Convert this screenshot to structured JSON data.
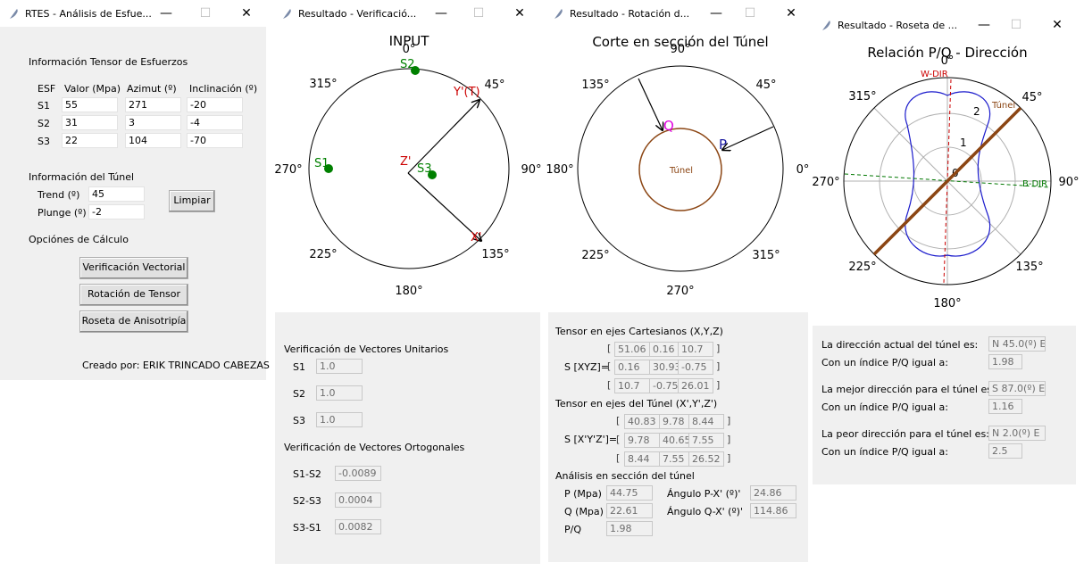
{
  "win1": {
    "title": "RTES - Análisis de Esfue...",
    "sec_tensor": "Información Tensor de Esfuerzos",
    "headers": [
      "ESF",
      "Valor (Mpa)",
      "Azimut (º)",
      "Inclinación (º)"
    ],
    "rows": [
      {
        "name": "S1",
        "valor": "55",
        "azimut": "271",
        "incl": "-20"
      },
      {
        "name": "S2",
        "valor": "31",
        "azimut": "3",
        "incl": "-4"
      },
      {
        "name": "S3",
        "valor": "22",
        "azimut": "104",
        "incl": "-70"
      }
    ],
    "sec_tunel": "Información del Túnel",
    "trend_label": "Trend (º)",
    "trend_value": "45",
    "plunge_label": "Plunge (º)",
    "plunge_value": "-2",
    "limpiar": "Limpiar",
    "sec_calc": "Opciónes de Cálculo",
    "btn_vector": "Verificación Vectorial",
    "btn_rot": "Rotación de Tensor",
    "btn_roseta": "Roseta de Anisotripía",
    "credit": "Creado por: ERIK TRINCADO CABEZAS"
  },
  "win2": {
    "title": "Resultado - Verificació...",
    "plot_title": "INPUT",
    "angles": {
      "a0": "0°",
      "a45": "45°",
      "a90": "90°",
      "a135": "135°",
      "a180": "180°",
      "a225": "225°",
      "a270": "270°",
      "a315": "315°"
    },
    "points": {
      "s1": "S1",
      "s2": "S2",
      "s3": "S3",
      "xp": "X'",
      "yp": "Y'(T)",
      "zp": "Z'"
    },
    "sec_unit": "Verificación de Vectores Unitarios",
    "unit": [
      {
        "label": "S1",
        "value": "1.0"
      },
      {
        "label": "S2",
        "value": "1.0"
      },
      {
        "label": "S3",
        "value": "1.0"
      }
    ],
    "sec_orto": "Verificación de Vectores Ortogonales",
    "orto": [
      {
        "label": "S1-S2",
        "value": "-0.0089"
      },
      {
        "label": "S2-S3",
        "value": "0.0004"
      },
      {
        "label": "S3-S1",
        "value": "0.0082"
      }
    ]
  },
  "win3": {
    "title": "Resultado - Rotación d...",
    "plot_title": "Corte en sección del Túnel",
    "angles": {
      "a0": "0°",
      "a45": "45°",
      "a90": "90°",
      "a135": "135°",
      "a180": "180°",
      "a225": "225°",
      "a270": "270°",
      "a315": "315°"
    },
    "tunel": "Túnel",
    "p": "P",
    "q": "Q",
    "sec_cart": "Tensor en ejes Cartesianos (X,Y,Z)",
    "s_xyz": "S [XYZ]=",
    "m_xyz": [
      [
        "51.06",
        "0.16",
        "10.7"
      ],
      [
        "0.16",
        "30.93",
        "-0.75"
      ],
      [
        "10.7",
        "-0.75",
        "26.01"
      ]
    ],
    "sec_tun": "Tensor en ejes del Túnel (X',Y',Z')",
    "s_tun": "S [X'Y'Z']=",
    "m_tun": [
      [
        "40.83",
        "9.78",
        "8.44"
      ],
      [
        "9.78",
        "40.65",
        "7.55"
      ],
      [
        "8.44",
        "7.55",
        "26.52"
      ]
    ],
    "sec_an": "Análisis en sección del túnel",
    "p_label": "P (Mpa)",
    "p_value": "44.75",
    "q_label": "Q (Mpa)",
    "q_value": "22.61",
    "pq_label": "P/Q",
    "pq_value": "1.98",
    "apx_label": "Ángulo P-X' (º)'",
    "apx_value": "24.86",
    "aqx_label": "Ángulo Q-X' (º)'",
    "aqx_value": "114.86"
  },
  "win4": {
    "title": "Resultado - Roseta de ...",
    "plot_title": "Relación P/Q - Dirección",
    "angles": {
      "a0": "0°",
      "a45": "45°",
      "a90": "90°",
      "a135": "135°",
      "a180": "180°",
      "a225": "225°",
      "a270": "270°",
      "a315": "315°"
    },
    "ticks": [
      "0",
      "1",
      "2"
    ],
    "wdir": "W-DIR",
    "bdir": "B-DIR",
    "tunel": "Túnel",
    "dir_actual_label": "La dirección actual del túnel es:",
    "dir_actual_value": "N 45.0(º) E",
    "idx1_label": "Con un índice P/Q igual a:",
    "idx1_value": "1.98",
    "dir_mejor_label": "La mejor dirección para el túnel es:",
    "dir_mejor_value": "S 87.0(º) E",
    "idx2_label": "Con un índice P/Q igual a:",
    "idx2_value": "1.16",
    "dir_peor_label": "La peor dirección para el túnel es:",
    "dir_peor_value": "N 2.0(º) E",
    "idx3_label": "Con un índice P/Q igual a:",
    "idx3_value": "2.5"
  }
}
